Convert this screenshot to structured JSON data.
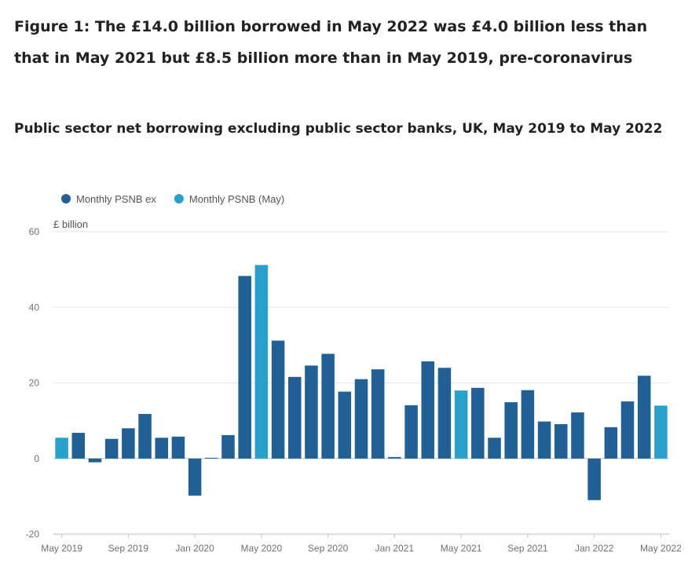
{
  "title": "Figure 1: The £14.0 billion borrowed in May 2022 was £4.0 billion less than that in May 2021 but £8.5 billion more than in May 2019, pre-coronavirus",
  "subtitle": "Public sector net borrowing excluding public sector banks, UK, May 2019 to May 2022",
  "chart_data": {
    "type": "bar",
    "ylabel": "£ billion",
    "ylim": [
      -20,
      60
    ],
    "yticks": [
      -20,
      0,
      20,
      40,
      60
    ],
    "grid": true,
    "legend_position": "top-left",
    "x_tick_labels": [
      {
        "index": 0,
        "label": "May 2019"
      },
      {
        "index": 4,
        "label": "Sep 2019"
      },
      {
        "index": 8,
        "label": "Jan 2020"
      },
      {
        "index": 12,
        "label": "May 2020"
      },
      {
        "index": 16,
        "label": "Sep 2020"
      },
      {
        "index": 20,
        "label": "Jan 2021"
      },
      {
        "index": 24,
        "label": "May 2021"
      },
      {
        "index": 28,
        "label": "Sep 2021"
      },
      {
        "index": 32,
        "label": "Jan 2022"
      },
      {
        "index": 36,
        "label": "May 2022"
      }
    ],
    "series": [
      {
        "name": "Monthly PSNB ex",
        "color": "#206095"
      },
      {
        "name": "Monthly PSNB (May)",
        "color": "#27a0cc"
      }
    ],
    "categories": [
      "May 2019",
      "Jun 2019",
      "Jul 2019",
      "Aug 2019",
      "Sep 2019",
      "Oct 2019",
      "Nov 2019",
      "Dec 2019",
      "Jan 2020",
      "Feb 2020",
      "Mar 2020",
      "Apr 2020",
      "May 2020",
      "Jun 2020",
      "Jul 2020",
      "Aug 2020",
      "Sep 2020",
      "Oct 2020",
      "Nov 2020",
      "Dec 2020",
      "Jan 2021",
      "Feb 2021",
      "Mar 2021",
      "Apr 2021",
      "May 2021",
      "Jun 2021",
      "Jul 2021",
      "Aug 2021",
      "Sep 2021",
      "Oct 2021",
      "Nov 2021",
      "Dec 2021",
      "Jan 2022",
      "Feb 2022",
      "Mar 2022",
      "Apr 2022",
      "May 2022"
    ],
    "values": [
      5.5,
      6.8,
      -1.0,
      5.2,
      8.0,
      11.8,
      5.5,
      5.8,
      -9.8,
      0.2,
      6.2,
      48.3,
      51.2,
      31.2,
      21.6,
      24.6,
      27.7,
      17.7,
      21.0,
      23.6,
      0.4,
      14.1,
      25.7,
      24.0,
      18.0,
      18.7,
      5.5,
      14.9,
      18.1,
      9.8,
      9.1,
      12.2,
      -11.0,
      8.3,
      15.1,
      21.9,
      14.0
    ],
    "series_index": [
      1,
      0,
      0,
      0,
      0,
      0,
      0,
      0,
      0,
      0,
      0,
      0,
      1,
      0,
      0,
      0,
      0,
      0,
      0,
      0,
      0,
      0,
      0,
      0,
      1,
      0,
      0,
      0,
      0,
      0,
      0,
      0,
      0,
      0,
      0,
      0,
      1
    ]
  }
}
